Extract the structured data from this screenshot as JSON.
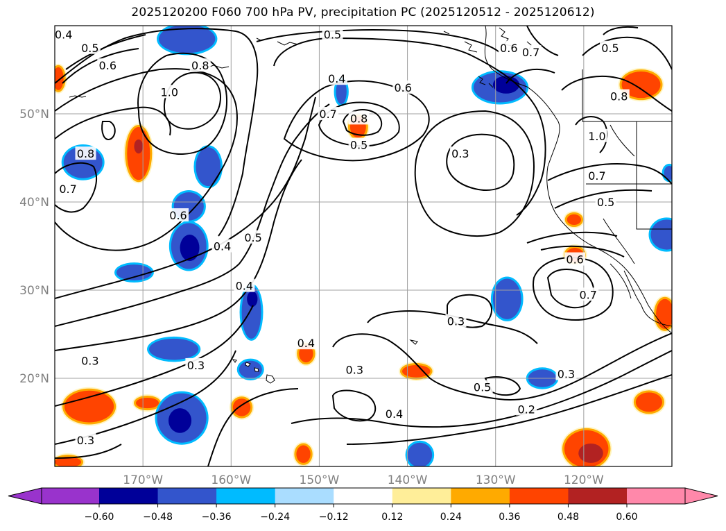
{
  "title": "2025120200 F060 700 hPa PV, precipitation PC (2025120512 - 2025120612)",
  "map": {
    "lon_range": [
      -180,
      -110
    ],
    "lat_range": [
      10,
      60
    ],
    "lat_ticks": [
      {
        "value": 20,
        "label": "20°N"
      },
      {
        "value": 30,
        "label": "30°N"
      },
      {
        "value": 40,
        "label": "40°N"
      },
      {
        "value": 50,
        "label": "50°N"
      }
    ],
    "lon_ticks": [
      {
        "value": -170,
        "label": "170°W"
      },
      {
        "value": -160,
        "label": "160°W"
      },
      {
        "value": -150,
        "label": "150°W"
      },
      {
        "value": -140,
        "label": "140°W"
      },
      {
        "value": -130,
        "label": "130°W"
      },
      {
        "value": -120,
        "label": "120°W"
      }
    ],
    "gridlines": true
  },
  "colorbar": {
    "ticks": [
      "−0.60",
      "−0.48",
      "−0.36",
      "−0.24",
      "−0.12",
      "0.12",
      "0.24",
      "0.36",
      "0.48",
      "0.60"
    ],
    "colors": [
      "#9933cc",
      "#000099",
      "#3355cc",
      "#00bbff",
      "#aaddff",
      "#ffffff",
      "#ffee99",
      "#ffaa00",
      "#ff4400",
      "#b22222",
      "#ff88aa"
    ],
    "extend": "both"
  },
  "contour_labels": [
    {
      "text": "0.4",
      "lon": -179,
      "lat": 59
    },
    {
      "text": "0.5",
      "lon": -176,
      "lat": 57.5
    },
    {
      "text": "0.6",
      "lon": -174,
      "lat": 55.5
    },
    {
      "text": "0.8",
      "lon": -163.5,
      "lat": 55.5
    },
    {
      "text": "1.0",
      "lon": -167,
      "lat": 52.5
    },
    {
      "text": "0.8",
      "lon": -176.5,
      "lat": 45.5
    },
    {
      "text": "0.7",
      "lon": -178.5,
      "lat": 41.5
    },
    {
      "text": "0.6",
      "lon": -166,
      "lat": 38.5
    },
    {
      "text": "0.5",
      "lon": -157.5,
      "lat": 36
    },
    {
      "text": "0.4",
      "lon": -161,
      "lat": 35
    },
    {
      "text": "0.4",
      "lon": -158.5,
      "lat": 30.5
    },
    {
      "text": "0.5",
      "lon": -148.5,
      "lat": 59
    },
    {
      "text": "0.4",
      "lon": -148,
      "lat": 54
    },
    {
      "text": "0.7",
      "lon": -149,
      "lat": 50
    },
    {
      "text": "0.8",
      "lon": -145.5,
      "lat": 49.5
    },
    {
      "text": "0.6",
      "lon": -140.5,
      "lat": 53
    },
    {
      "text": "0.5",
      "lon": -145.5,
      "lat": 46.5
    },
    {
      "text": "0.3",
      "lon": -134,
      "lat": 45.5
    },
    {
      "text": "0.6",
      "lon": -128.5,
      "lat": 57.5
    },
    {
      "text": "0.7",
      "lon": -126,
      "lat": 57
    },
    {
      "text": "0.5",
      "lon": -117,
      "lat": 57.5
    },
    {
      "text": "0.8",
      "lon": -116,
      "lat": 52
    },
    {
      "text": "1.0",
      "lon": -118.5,
      "lat": 47.5
    },
    {
      "text": "0.7",
      "lon": -118.5,
      "lat": 43
    },
    {
      "text": "0.5",
      "lon": -117.5,
      "lat": 40
    },
    {
      "text": "0.6",
      "lon": -121,
      "lat": 33.5
    },
    {
      "text": "0.7",
      "lon": -119.5,
      "lat": 29.5
    },
    {
      "text": "0.3",
      "lon": -134.5,
      "lat": 26.5
    },
    {
      "text": "0.4",
      "lon": -151.5,
      "lat": 24
    },
    {
      "text": "0.3",
      "lon": -176,
      "lat": 22
    },
    {
      "text": "0.3",
      "lon": -164,
      "lat": 21.5
    },
    {
      "text": "0.3",
      "lon": -146,
      "lat": 21
    },
    {
      "text": "0.5",
      "lon": -131.5,
      "lat": 19
    },
    {
      "text": "0.3",
      "lon": -122,
      "lat": 20.5
    },
    {
      "text": "0.2",
      "lon": -126.5,
      "lat": 16.5
    },
    {
      "text": "0.4",
      "lon": -141.5,
      "lat": 16
    },
    {
      "text": "0.3",
      "lon": -176.5,
      "lat": 13
    }
  ],
  "shaded_areas": [
    {
      "lon": -165,
      "lat": 58.5,
      "rx": 3.2,
      "ry": 1.6,
      "fill": "#3355cc"
    },
    {
      "lon": -179.6,
      "lat": 54,
      "rx": 0.6,
      "ry": 1.3,
      "fill": "#ff4400"
    },
    {
      "lon": -170.5,
      "lat": 45.5,
      "rx": 1.3,
      "ry": 3,
      "fill": "#ff4400"
    },
    {
      "lon": -176.8,
      "lat": 44.5,
      "rx": 2.2,
      "ry": 1.8,
      "fill": "#3355cc"
    },
    {
      "lon": -162.6,
      "lat": 44,
      "rx": 1.4,
      "ry": 2.2,
      "fill": "#3355cc"
    },
    {
      "lon": -164.8,
      "lat": 39.5,
      "rx": 1.7,
      "ry": 1.6,
      "fill": "#3355cc"
    },
    {
      "lon": -164.8,
      "lat": 35,
      "rx": 2,
      "ry": 2.6,
      "fill": "#3355cc"
    },
    {
      "lon": -171,
      "lat": 32,
      "rx": 2,
      "ry": 0.9,
      "fill": "#3355cc"
    },
    {
      "lon": -157.7,
      "lat": 27.5,
      "rx": 1.1,
      "ry": 3,
      "fill": "#3355cc"
    },
    {
      "lon": -147.5,
      "lat": 52.5,
      "rx": 0.6,
      "ry": 1.4,
      "fill": "#3355cc"
    },
    {
      "lon": -145.6,
      "lat": 48.5,
      "rx": 0.9,
      "ry": 1.2,
      "fill": "#ff4400"
    },
    {
      "lon": -129.5,
      "lat": 53,
      "rx": 3,
      "ry": 1.7,
      "fill": "#3355cc"
    },
    {
      "lon": -113.5,
      "lat": 53.3,
      "rx": 2.2,
      "ry": 1.5,
      "fill": "#ff4400"
    },
    {
      "lon": -110.6,
      "lat": 36.3,
      "rx": 1.8,
      "ry": 1.7,
      "fill": "#3355cc"
    },
    {
      "lon": -110.3,
      "lat": 43.3,
      "rx": 0.6,
      "ry": 0.8,
      "fill": "#3355cc"
    },
    {
      "lon": -121.1,
      "lat": 38,
      "rx": 0.8,
      "ry": 0.6,
      "fill": "#ff4400"
    },
    {
      "lon": -121,
      "lat": 34,
      "rx": 1,
      "ry": 0.8,
      "fill": "#ff4400"
    },
    {
      "lon": -128.7,
      "lat": 29,
      "rx": 1.6,
      "ry": 2.3,
      "fill": "#3355cc"
    },
    {
      "lon": -124.7,
      "lat": 20,
      "rx": 1.6,
      "ry": 1,
      "fill": "#3355cc"
    },
    {
      "lon": -110.8,
      "lat": 27.3,
      "rx": 1,
      "ry": 1.7,
      "fill": "#ff4400"
    },
    {
      "lon": -166.5,
      "lat": 23.3,
      "rx": 2.8,
      "ry": 1.2,
      "fill": "#3355cc"
    },
    {
      "lon": -157.8,
      "lat": 21,
      "rx": 1.3,
      "ry": 1,
      "fill": "#3355cc"
    },
    {
      "lon": -151.5,
      "lat": 22.8,
      "rx": 0.8,
      "ry": 1,
      "fill": "#ff4400"
    },
    {
      "lon": -176.1,
      "lat": 16.8,
      "rx": 2.8,
      "ry": 1.8,
      "fill": "#ff4400"
    },
    {
      "lon": -169.5,
      "lat": 17.2,
      "rx": 1.3,
      "ry": 0.6,
      "fill": "#ff4400"
    },
    {
      "lon": -165.6,
      "lat": 15.5,
      "rx": 2.8,
      "ry": 2.8,
      "fill": "#3355cc"
    },
    {
      "lon": -158.8,
      "lat": 16.7,
      "rx": 1,
      "ry": 1,
      "fill": "#ff4400"
    },
    {
      "lon": -139,
      "lat": 20.8,
      "rx": 1.6,
      "ry": 0.7,
      "fill": "#ff4400"
    },
    {
      "lon": -151.8,
      "lat": 11.4,
      "rx": 0.8,
      "ry": 1,
      "fill": "#ff4400"
    },
    {
      "lon": -138.6,
      "lat": 11.3,
      "rx": 1.4,
      "ry": 1.4,
      "fill": "#3355cc"
    },
    {
      "lon": -178.5,
      "lat": 10.5,
      "rx": 1.5,
      "ry": 0.6,
      "fill": "#ff4400"
    },
    {
      "lon": -112.6,
      "lat": 17.3,
      "rx": 1.5,
      "ry": 1.1,
      "fill": "#ff4400"
    },
    {
      "lon": -119.7,
      "lat": 12,
      "rx": 2.5,
      "ry": 2.1,
      "fill": "#ff4400"
    }
  ],
  "dark_cores": [
    {
      "lon": -164.7,
      "lat": 34.8,
      "rx": 1.1,
      "ry": 1.5,
      "fill": "#000099"
    },
    {
      "lon": -157.6,
      "lat": 29,
      "rx": 0.6,
      "ry": 0.9,
      "fill": "#000099"
    },
    {
      "lon": -165.8,
      "lat": 15.2,
      "rx": 1.3,
      "ry": 1.4,
      "fill": "#000099"
    },
    {
      "lon": -128.8,
      "lat": 53.3,
      "rx": 1.5,
      "ry": 1,
      "fill": "#000099"
    },
    {
      "lon": -170.5,
      "lat": 46.3,
      "rx": 0.5,
      "ry": 0.8,
      "fill": "#b22222"
    },
    {
      "lon": -119.2,
      "lat": 11.5,
      "rx": 1.4,
      "ry": 1.1,
      "fill": "#b22222"
    }
  ]
}
